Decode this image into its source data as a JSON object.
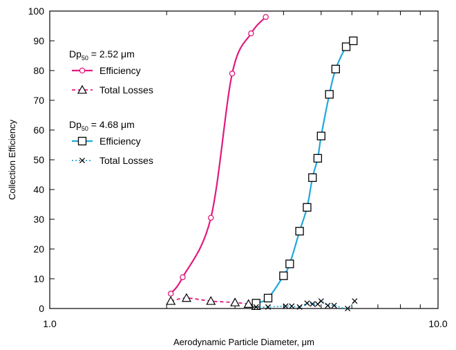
{
  "chart_data": {
    "type": "line",
    "xlabel": "Aerodynamic Particle Diameter, μm",
    "ylabel": "Collection Efficiency",
    "xscale": "log",
    "xlim": [
      1.0,
      10.0
    ],
    "ylim": [
      0,
      100
    ],
    "x_ticks": [
      "1.0",
      "10.0"
    ],
    "y_ticks": [
      "0",
      "10",
      "20",
      "30",
      "40",
      "50",
      "60",
      "70",
      "80",
      "90",
      "100"
    ],
    "grid": false,
    "legend_placement": "top-left",
    "groups": [
      {
        "dp_label": "Dp",
        "dp_sub": "50",
        "dp_value": " = 2.52 μm"
      },
      {
        "dp_label": "Dp",
        "dp_sub": "50",
        "dp_value": " = 4.68 μm"
      }
    ],
    "series": [
      {
        "name": "Efficiency",
        "group": 0,
        "color": "#e0197d",
        "marker": "circle",
        "line": "solid",
        "points": [
          [
            2.05,
            5.0
          ],
          [
            2.2,
            10.5
          ],
          [
            2.6,
            30.5
          ],
          [
            2.95,
            79.0
          ],
          [
            3.3,
            92.5
          ],
          [
            3.6,
            98.0
          ]
        ]
      },
      {
        "name": "Total Losses",
        "group": 0,
        "color": "#e0197d",
        "marker": "triangle",
        "line": "dashed",
        "points": [
          [
            2.05,
            2.5
          ],
          [
            2.25,
            3.5
          ],
          [
            2.6,
            2.5
          ],
          [
            3.0,
            2.0
          ],
          [
            3.25,
            1.5
          ],
          [
            3.4,
            0.8
          ]
        ]
      },
      {
        "name": "Efficiency",
        "group": 1,
        "color": "#1ea8dc",
        "marker": "square",
        "line": "solid",
        "points": [
          [
            3.4,
            1.8
          ],
          [
            3.65,
            3.5
          ],
          [
            4.0,
            11.0
          ],
          [
            4.15,
            15.0
          ],
          [
            4.4,
            26.0
          ],
          [
            4.6,
            34.0
          ],
          [
            4.75,
            44.0
          ],
          [
            4.9,
            50.5
          ],
          [
            5.0,
            58.0
          ],
          [
            5.25,
            72.0
          ],
          [
            5.45,
            80.5
          ],
          [
            5.8,
            88.0
          ],
          [
            6.05,
            90.0
          ]
        ]
      },
      {
        "name": "Total Losses",
        "group": 1,
        "color": "#1ea8dc",
        "marker": "x",
        "line": "dotted",
        "points": [
          [
            3.4,
            0.5
          ],
          [
            3.65,
            0.5
          ],
          [
            4.05,
            0.8
          ],
          [
            4.2,
            0.8
          ],
          [
            4.4,
            0.5
          ],
          [
            4.6,
            1.8
          ],
          [
            4.75,
            1.5
          ],
          [
            4.9,
            1.5
          ],
          [
            5.0,
            2.5
          ],
          [
            5.2,
            1.0
          ],
          [
            5.4,
            1.0
          ],
          [
            5.85,
            0.0
          ],
          [
            6.1,
            2.5
          ]
        ]
      }
    ]
  }
}
